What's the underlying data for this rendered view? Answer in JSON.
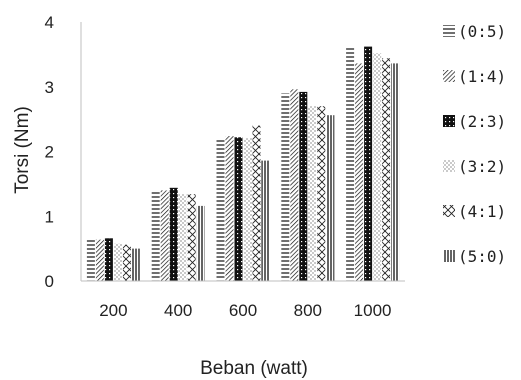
{
  "chart_data": {
    "type": "bar",
    "categories": [
      "200",
      "400",
      "600",
      "800",
      "1000"
    ],
    "series": [
      {
        "name": "(0:5)",
        "values": [
          0.66,
          1.38,
          2.18,
          2.9,
          3.62
        ]
      },
      {
        "name": "(1:4)",
        "values": [
          0.64,
          1.4,
          2.24,
          2.96,
          3.36
        ]
      },
      {
        "name": "(2:3)",
        "values": [
          0.66,
          1.44,
          2.22,
          2.92,
          3.62
        ]
      },
      {
        "name": "(3:2)",
        "values": [
          0.58,
          1.34,
          2.2,
          2.7,
          3.52
        ]
      },
      {
        "name": "(4:1)",
        "values": [
          0.56,
          1.34,
          2.4,
          2.7,
          3.44
        ]
      },
      {
        "name": "(5:0)",
        "values": [
          0.5,
          1.16,
          1.86,
          2.56,
          3.36
        ]
      }
    ],
    "yticks": [
      "0",
      "1",
      "2",
      "3",
      "4"
    ],
    "ylim": [
      0,
      4
    ],
    "xlabel": "Beban (watt)",
    "ylabel": "Torsi (Nm)",
    "legend_position": "right",
    "grid": false
  }
}
